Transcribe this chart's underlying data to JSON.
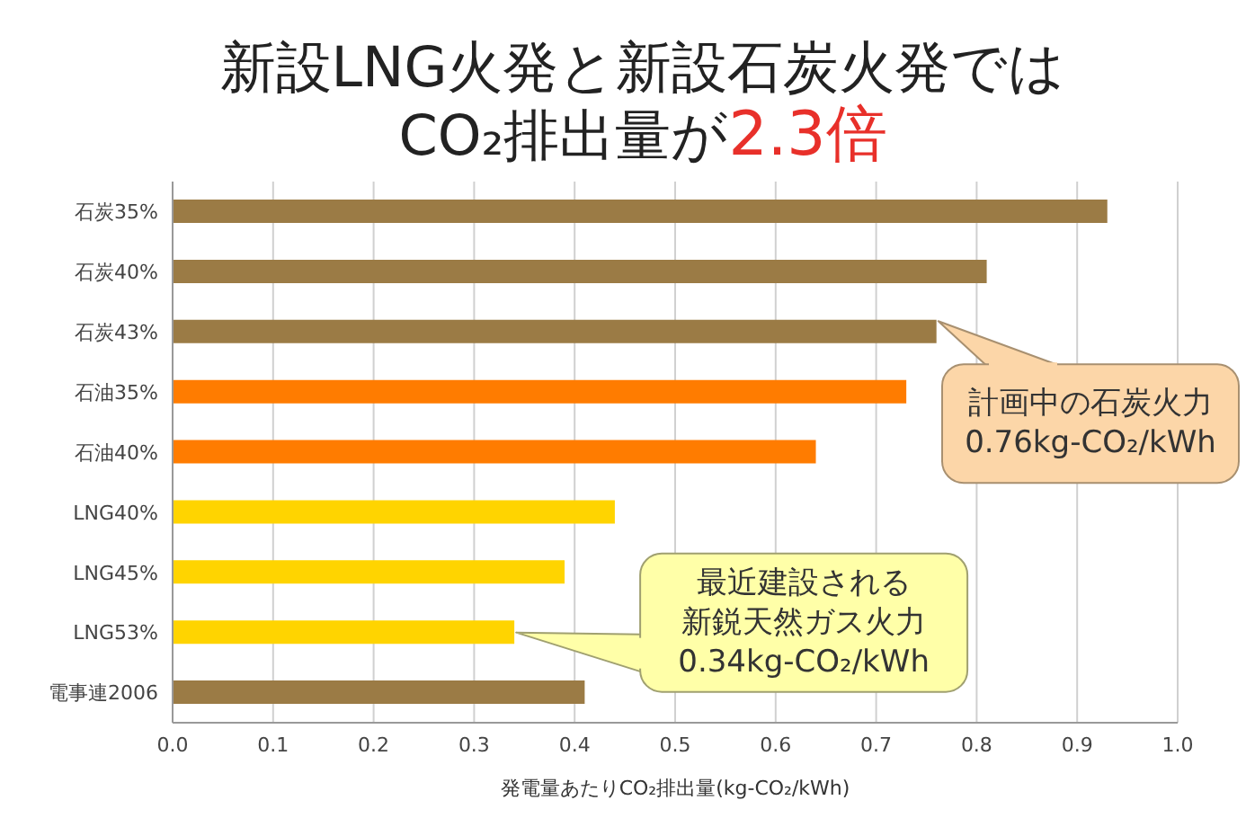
{
  "chart_data": {
    "type": "bar",
    "orientation": "horizontal",
    "title": "新設LNG火発と新設石炭火発では",
    "subtitle": "CO₂排出量が",
    "xlabel": "発電量あたりCO₂排出量(kg-CO₂/kWh)",
    "categories": [
      "石炭35%",
      "石炭40%",
      "石炭43%",
      "石油35%",
      "石油40%",
      "LNG40%",
      "LNG45%",
      "LNG53%",
      "電事連2006"
    ],
    "values": [
      0.93,
      0.81,
      0.76,
      0.73,
      0.64,
      0.44,
      0.39,
      0.34,
      0.41
    ],
    "colors": [
      "#9b7b45",
      "#9b7b45",
      "#9b7b45",
      "#ff7c00",
      "#ff7c00",
      "#ffd400",
      "#ffd400",
      "#ffd400",
      "#9b7b45"
    ],
    "xlim": [
      0,
      1
    ],
    "xticks": [
      {
        "value": 0,
        "label": "0.0"
      },
      0.1,
      0.2,
      0.3,
      0.4,
      0.5,
      0.6,
      0.7,
      0.8,
      0.9,
      {
        "value": 1,
        "label": "1.0"
      }
    ],
    "grid": "x",
    "annotations": [
      "2.3倍",
      {
        "text": "計画中の石炭火力\n0.76kg-CO₂/kWh",
        "x": 0.76,
        "y": "石炭43%"
      },
      {
        "text": "最近建設される新鋭天然ガス火力\n0.34kg-CO₂/kWh",
        "x": 0.34,
        "y": "LNG53%"
      }
    ]
  }
}
